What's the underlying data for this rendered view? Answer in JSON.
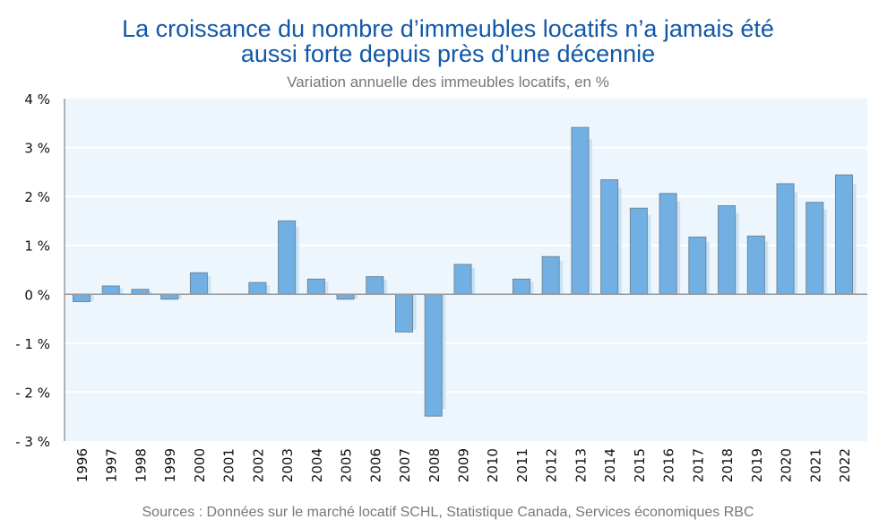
{
  "chart_data": {
    "type": "bar",
    "title": "La croissance du nombre d’immeubles locatifs n’a jamais été aussi forte depuis près d’une décennie",
    "title_lines": [
      "La croissance du nombre d’immeubles locatifs n’a jamais été",
      "aussi forte depuis près d’une décennie"
    ],
    "subtitle": "Variation annuelle des immeubles locatifs, en %",
    "source": "Sources : Données sur le marché locatif SCHL, Statistique Canada, Services économiques RBC",
    "xlabel": "",
    "ylabel": "",
    "ylim": [
      -3,
      4
    ],
    "yticks": [
      4,
      3,
      2,
      1,
      0,
      -1,
      -2,
      -3
    ],
    "ytick_labels": [
      "4 %",
      "3 %",
      "2 %",
      "1 %",
      "0 %",
      "- 1 %",
      "- 2 %",
      "- 3 %"
    ],
    "grid": true,
    "categories": [
      "1996",
      "1997",
      "1998",
      "1999",
      "2000",
      "2001",
      "2002",
      "2003",
      "2004",
      "2005",
      "2006",
      "2007",
      "2008",
      "2009",
      "2010",
      "2011",
      "2012",
      "2013",
      "2014",
      "2015",
      "2016",
      "2017",
      "2018",
      "2019",
      "2020",
      "2021",
      "2022"
    ],
    "values": [
      -0.15,
      0.17,
      0.1,
      -0.1,
      0.44,
      0,
      0.24,
      1.5,
      0.31,
      -0.1,
      0.36,
      -0.77,
      -2.49,
      0.61,
      0,
      0.31,
      0.77,
      3.41,
      2.34,
      1.76,
      2.06,
      1.17,
      1.81,
      1.19,
      2.26,
      1.88,
      2.44
    ],
    "colors": {
      "bar": "#72b0e3",
      "bar_border": "#6f8799",
      "shadow": "#c8e2f6",
      "plot_bg": "#edf5fd",
      "title": "#1158a8"
    }
  }
}
